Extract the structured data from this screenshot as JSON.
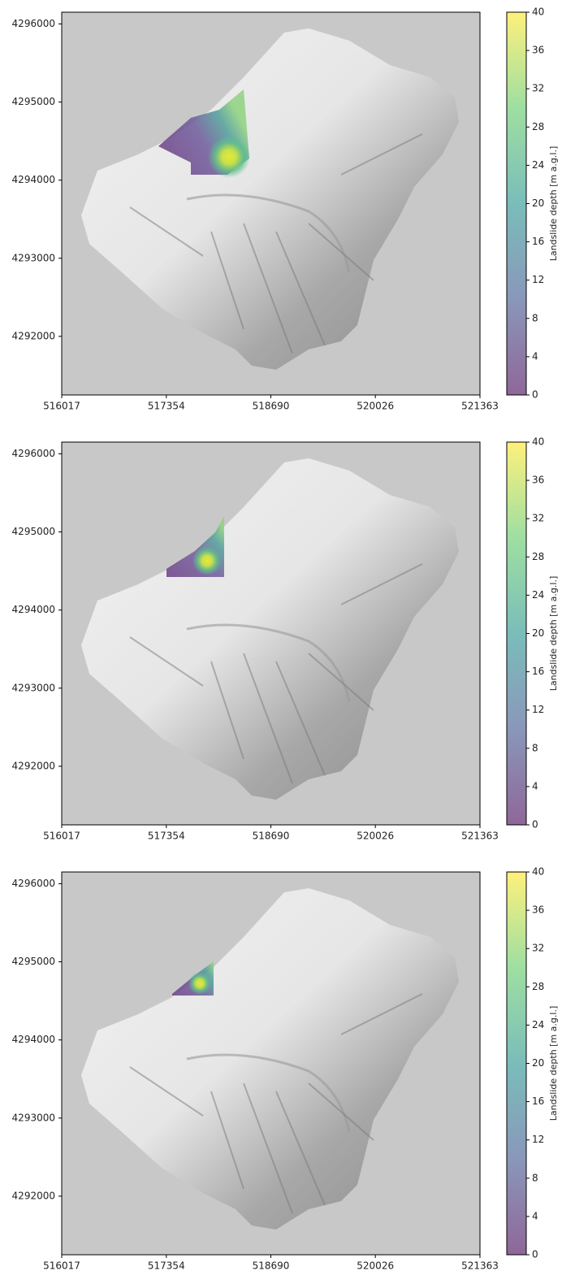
{
  "chart_data": [
    {
      "type": "map",
      "colormap": "viridis",
      "xlim": [
        516017,
        521363
      ],
      "xticks": [
        516017,
        517354,
        518690,
        520026,
        521363
      ],
      "ylim": [
        4291250,
        4296150
      ],
      "yticks": [
        4292000,
        4293000,
        4294000,
        4295000,
        4296000
      ],
      "colorbar_label": "Landslide depth [m a.g.l.]",
      "clim": [
        0,
        40
      ],
      "cticks": [
        0,
        4,
        8,
        12,
        16,
        20,
        24,
        28,
        32,
        36,
        40
      ]
    },
    {
      "type": "map",
      "colormap": "viridis",
      "xlim": [
        516017,
        521363
      ],
      "xticks": [
        516017,
        517354,
        518690,
        520026,
        521363
      ],
      "ylim": [
        4291250,
        4296150
      ],
      "yticks": [
        4292000,
        4293000,
        4294000,
        4295000,
        4296000
      ],
      "colorbar_label": "Landslide depth [m a.g.l.]",
      "clim": [
        0,
        40
      ],
      "cticks": [
        0,
        4,
        8,
        12,
        16,
        20,
        24,
        28,
        32,
        36,
        40
      ]
    },
    {
      "type": "map",
      "colormap": "viridis",
      "xlim": [
        516017,
        521363
      ],
      "xticks": [
        516017,
        517354,
        518690,
        520026,
        521363
      ],
      "ylim": [
        4291250,
        4296150
      ],
      "yticks": [
        4292000,
        4293000,
        4294000,
        4295000,
        4296000
      ],
      "colorbar_label": "Landslide depth [m a.g.l.]",
      "clim": [
        0,
        40
      ],
      "cticks": [
        0,
        4,
        8,
        12,
        16,
        20,
        24,
        28,
        32,
        36,
        40
      ]
    }
  ]
}
